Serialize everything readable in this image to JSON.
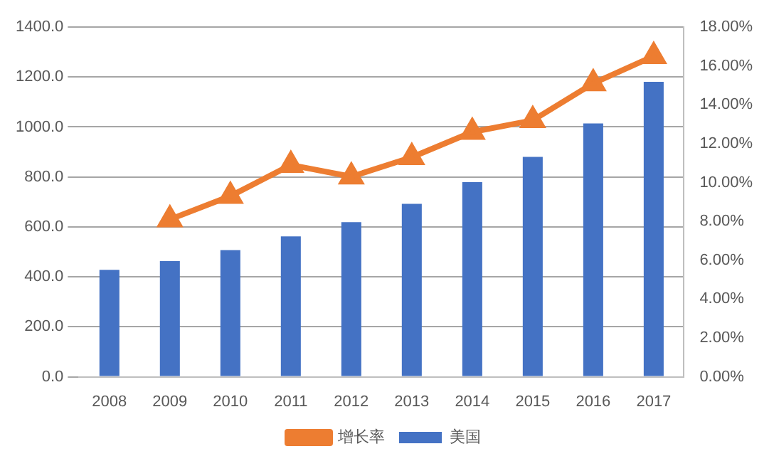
{
  "chart_data": {
    "type": "bar",
    "categories": [
      "2008",
      "2009",
      "2010",
      "2011",
      "2012",
      "2013",
      "2014",
      "2015",
      "2016",
      "2017"
    ],
    "series": [
      {
        "name": "美国",
        "color": "#4472c4",
        "values": [
          428,
          463,
          507,
          562,
          619,
          692,
          779,
          880,
          1014,
          1181
        ]
      },
      {
        "name": "增长率",
        "type": "line",
        "axis": "y2",
        "color": "#ed7d31",
        "marker": "triangle",
        "values": [
          null,
          8.1,
          9.3,
          10.9,
          10.3,
          11.3,
          12.6,
          13.2,
          15.1,
          16.5
        ]
      }
    ],
    "ylim": [
      0,
      1400
    ],
    "yticks": [
      {
        "value": 0,
        "label": "0.0"
      },
      {
        "value": 200,
        "label": "200.0"
      },
      {
        "value": 400,
        "label": "400.0"
      },
      {
        "value": 600,
        "label": "600.0"
      },
      {
        "value": 800,
        "label": "800.0"
      },
      {
        "value": 1000,
        "label": "1000.0"
      },
      {
        "value": 1200,
        "label": "1200.0"
      },
      {
        "value": 1400,
        "label": "1400.0"
      }
    ],
    "y2lim": [
      0,
      18
    ],
    "y2ticks": [
      {
        "value": 0,
        "label": "0.00%"
      },
      {
        "value": 2,
        "label": "2.00%"
      },
      {
        "value": 4,
        "label": "4.00%"
      },
      {
        "value": 6,
        "label": "6.00%"
      },
      {
        "value": 8,
        "label": "8.00%"
      },
      {
        "value": 10,
        "label": "10.00%"
      },
      {
        "value": 12,
        "label": "12.00%"
      },
      {
        "value": 14,
        "label": "14.00%"
      },
      {
        "value": 16,
        "label": "16.00%"
      },
      {
        "value": 18,
        "label": "18.00%"
      }
    ],
    "grid": "y",
    "legend": "bottom"
  }
}
